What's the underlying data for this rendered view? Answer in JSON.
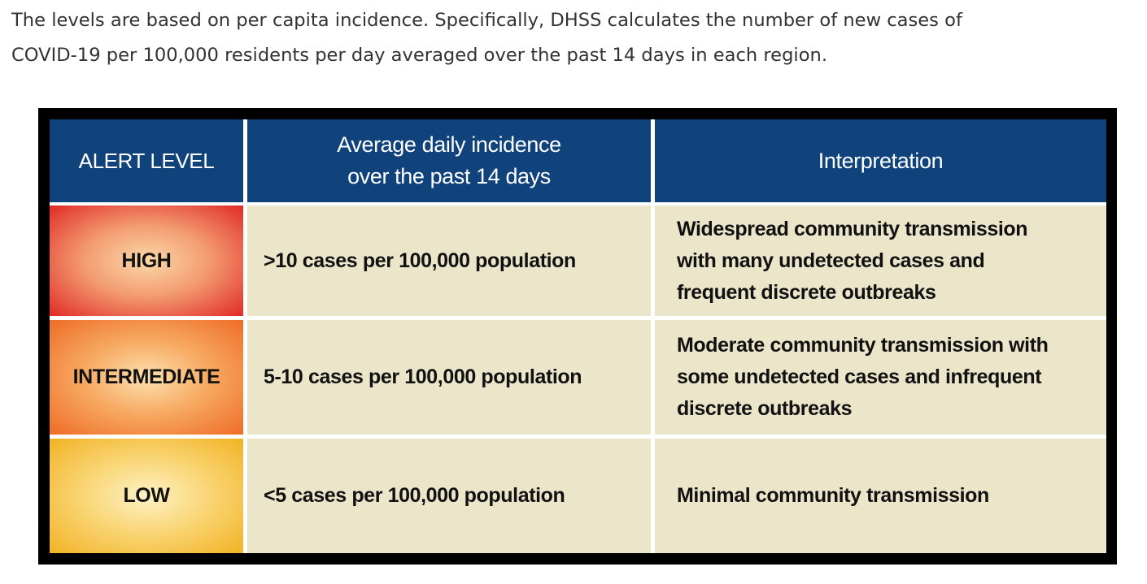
{
  "intro": {
    "lines": [
      "The levels are based on per capita incidence. Specifically, DHSS calculates the number of new cases of",
      "COVID-19 per 100,000 residents per day averaged over the past 14 days in each region."
    ]
  },
  "table": {
    "header": [
      [
        "ALERT LEVEL"
      ],
      [
        "Average daily incidence",
        "over the past 14 days"
      ],
      [
        "Interpretation"
      ]
    ],
    "rows": [
      [
        [
          "HIGH"
        ],
        [
          ">10 cases per 100,000 population"
        ],
        [
          "Widespread community transmission",
          "with many undetected cases and",
          "frequent discrete outbreaks"
        ]
      ],
      [
        [
          "INTERMEDIATE"
        ],
        [
          "5-10 cases per 100,000 population"
        ],
        [
          "Moderate community transmission with",
          "some undetected cases and infrequent",
          "discrete outbreaks"
        ]
      ],
      [
        [
          "LOW"
        ],
        [
          "<5 cases per 100,000 population"
        ],
        [
          "Minimal community transmission"
        ]
      ]
    ]
  }
}
